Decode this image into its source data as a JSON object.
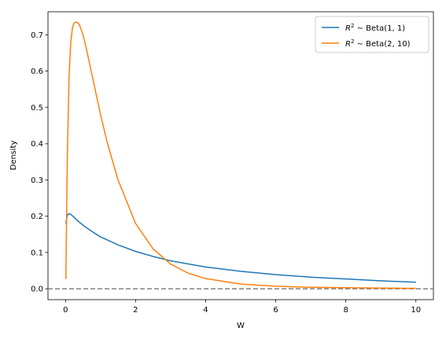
{
  "chart_data": {
    "type": "line",
    "title": "",
    "xlabel": "W",
    "ylabel": "Density",
    "xlim": [
      -0.5,
      10.5
    ],
    "ylim": [
      -0.03,
      0.7635
    ],
    "xticks": [
      0,
      2,
      4,
      6,
      8,
      10
    ],
    "yticks": [
      0.0,
      0.1,
      0.2,
      0.3,
      0.4,
      0.5,
      0.6,
      0.7
    ],
    "xtick_labels": [
      "0",
      "2",
      "4",
      "6",
      "8",
      "10"
    ],
    "ytick_labels": [
      "0.0",
      "0.1",
      "0.2",
      "0.3",
      "0.4",
      "0.5",
      "0.6",
      "0.7"
    ],
    "grid": false,
    "legend_position": "top-right",
    "reference_line": {
      "y": 0,
      "style": "dashed",
      "color": "#808080"
    },
    "series": [
      {
        "name_prefix": "R",
        "name_sup": "2",
        "name_suffix": " ∼ Beta(1, 1)",
        "color": "#1f77b4",
        "x": [
          0.01,
          0.05,
          0.1,
          0.15,
          0.2,
          0.3,
          0.4,
          0.6,
          0.8,
          1.0,
          1.5,
          2.0,
          2.5,
          3.0,
          4.0,
          5.0,
          6.0,
          7.0,
          8.0,
          9.0,
          10.0
        ],
        "y": [
          0.18,
          0.203,
          0.207,
          0.205,
          0.201,
          0.192,
          0.183,
          0.168,
          0.155,
          0.143,
          0.121,
          0.103,
          0.089,
          0.077,
          0.06,
          0.048,
          0.039,
          0.032,
          0.027,
          0.022,
          0.018
        ]
      },
      {
        "name_prefix": "R",
        "name_sup": "2",
        "name_suffix": " ∼ Beta(2, 10)",
        "color": "#ff7f0e",
        "x": [
          0.01,
          0.05,
          0.1,
          0.15,
          0.2,
          0.25,
          0.3,
          0.35,
          0.4,
          0.5,
          0.6,
          0.8,
          1.0,
          1.2,
          1.5,
          2.0,
          2.5,
          3.0,
          3.5,
          4.0,
          5.0,
          6.0,
          7.0,
          8.0,
          9.0,
          10.0
        ],
        "y": [
          0.027,
          0.35,
          0.58,
          0.68,
          0.72,
          0.733,
          0.735,
          0.733,
          0.727,
          0.7,
          0.66,
          0.57,
          0.48,
          0.4,
          0.3,
          0.18,
          0.11,
          0.068,
          0.043,
          0.028,
          0.013,
          0.007,
          0.004,
          0.003,
          0.002,
          0.001
        ]
      }
    ]
  }
}
